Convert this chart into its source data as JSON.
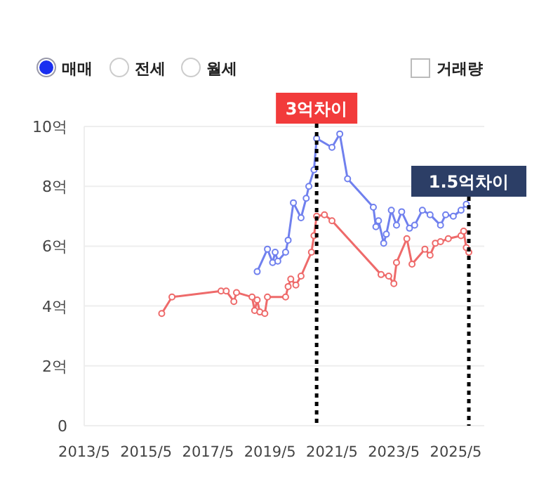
{
  "chart_data": {
    "type": "line",
    "annotations": [
      "매매",
      "전세",
      "월세",
      "거래량"
    ],
    "xlim": [
      "2013-05",
      "2026-04"
    ],
    "xticks": [
      {
        "value": "2013-05",
        "label": "2013/5"
      },
      {
        "value": "2015-05",
        "label": "2015/5"
      },
      {
        "value": "2017-05",
        "label": "2017/5"
      },
      {
        "value": "2019-05",
        "label": "2019/5"
      },
      {
        "value": "2021-05",
        "label": "2021/5"
      },
      {
        "value": "2023-05",
        "label": "2023/5"
      },
      {
        "value": "2025-05",
        "label": "2025/5"
      }
    ],
    "ylim": [
      0,
      10
    ],
    "yticks": [
      0,
      {
        "value": 2,
        "label": "2억"
      },
      {
        "value": 4,
        "label": "4억"
      },
      {
        "value": 6,
        "label": "6억"
      },
      {
        "value": 8,
        "label": "8억"
      },
      {
        "value": 10,
        "label": "10억"
      }
    ],
    "grid": "y",
    "marker": "circle",
    "line_style": "solid",
    "series": [
      {
        "color": "#7080ee",
        "x": [
          "2018-12",
          "2019-04",
          "2019-06",
          "2019-07",
          "2019-08",
          "2019-11",
          "2019-12",
          "2020-02",
          "2020-05",
          "2020-07",
          "2020-08",
          "2020-10",
          "2020-11",
          "2021-05",
          "2021-08",
          "2021-11",
          "2022-09",
          "2022-10",
          "2022-11",
          "2023-01",
          "2023-02",
          "2023-04",
          "2023-06",
          "2023-08",
          "2023-11",
          "2024-01",
          "2024-04",
          "2024-07",
          "2024-11",
          "2025-01",
          "2025-04",
          "2025-07",
          "2025-09"
        ],
        "values": [
          5.15,
          5.9,
          5.45,
          5.8,
          5.5,
          5.8,
          6.2,
          7.45,
          6.95,
          7.6,
          8.0,
          8.55,
          9.6,
          9.3,
          9.75,
          8.25,
          7.3,
          6.65,
          6.85,
          6.1,
          6.4,
          7.2,
          6.7,
          7.15,
          6.6,
          6.7,
          7.2,
          7.05,
          6.7,
          7.05,
          7.0,
          7.2,
          7.4
        ]
      },
      {
        "color": "#ee6a6a",
        "x": [
          "2015-11",
          "2016-03",
          "2017-10",
          "2017-12",
          "2018-03",
          "2018-04",
          "2018-10",
          "2018-11",
          "2018-12",
          "2019-01",
          "2019-03",
          "2019-04",
          "2019-11",
          "2019-12",
          "2020-01",
          "2020-03",
          "2020-05",
          "2020-09",
          "2020-10",
          "2020-11",
          "2021-02",
          "2021-05",
          "2022-12",
          "2023-03",
          "2023-05",
          "2023-06",
          "2023-10",
          "2023-12",
          "2024-05",
          "2024-07",
          "2024-09",
          "2024-11",
          "2025-02",
          "2025-07",
          "2025-08",
          "2025-09",
          "2025-10"
        ],
        "values": [
          3.75,
          4.3,
          4.5,
          4.5,
          4.15,
          4.45,
          4.3,
          3.85,
          4.2,
          3.8,
          3.75,
          4.3,
          4.3,
          4.65,
          4.9,
          4.7,
          5.0,
          5.8,
          6.35,
          7.0,
          7.05,
          6.85,
          5.05,
          5.0,
          4.75,
          5.45,
          6.25,
          5.4,
          5.9,
          5.7,
          6.1,
          6.15,
          6.25,
          6.35,
          6.5,
          5.95,
          5.8
        ]
      }
    ],
    "ref_lines": [
      {
        "axis": "x",
        "value": "2020-11",
        "label": "3억차이",
        "line_style": "dotted"
      },
      {
        "axis": "x",
        "value": "2025-10",
        "label": "1.5억차이",
        "line_style": "dotted"
      }
    ]
  }
}
